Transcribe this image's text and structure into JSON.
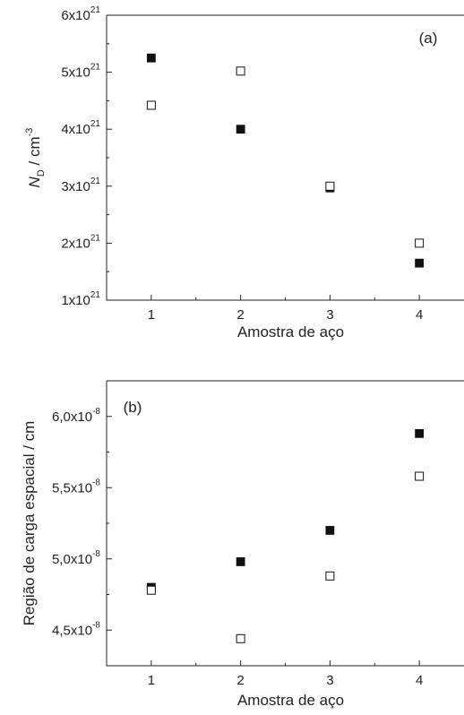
{
  "chart_data": [
    {
      "type": "scatter",
      "panel_label": "(a)",
      "xlabel": "Amostra de aço",
      "ylabel": {
        "main": "N",
        "sub": "D",
        "rest": " / cm",
        "sup": "-3"
      },
      "x_ticks": [
        "1",
        "2",
        "3",
        "4"
      ],
      "xlim": [
        0.5,
        4.5
      ],
      "ylim": [
        1e+21,
        6e+21
      ],
      "y_ticks": [
        {
          "value": 1e+21,
          "mant": "1x10",
          "exp": "21"
        },
        {
          "value": 2e+21,
          "mant": "2x10",
          "exp": "21"
        },
        {
          "value": 3e+21,
          "mant": "3x10",
          "exp": "21"
        },
        {
          "value": 4e+21,
          "mant": "4x10",
          "exp": "21"
        },
        {
          "value": 5e+21,
          "mant": "5x10",
          "exp": "21"
        },
        {
          "value": 6e+21,
          "mant": "6x10",
          "exp": "21"
        }
      ],
      "series": [
        {
          "marker": "filled-square",
          "x": [
            1,
            2,
            3,
            4
          ],
          "y": [
            5.25e+21,
            4e+21,
            2.97e+21,
            1.65e+21
          ]
        },
        {
          "marker": "open-square",
          "x": [
            1,
            2,
            3,
            4
          ],
          "y": [
            4.42e+21,
            5.02e+21,
            3e+21,
            2e+21
          ]
        }
      ]
    },
    {
      "type": "scatter",
      "panel_label": "(b)",
      "xlabel": "Amostra de aço",
      "ylabel": {
        "main": "Região de carga espacial / cm"
      },
      "x_ticks": [
        "1",
        "2",
        "3",
        "4"
      ],
      "xlim": [
        0.5,
        4.5
      ],
      "ylim": [
        4.25e-08,
        6.25e-08
      ],
      "y_ticks": [
        {
          "value": 4.5e-08,
          "mant": "4,5x10",
          "exp": "-8"
        },
        {
          "value": 5e-08,
          "mant": "5,0x10",
          "exp": "-8"
        },
        {
          "value": 5.5e-08,
          "mant": "5,5x10",
          "exp": "-8"
        },
        {
          "value": 6e-08,
          "mant": "6,0x10",
          "exp": "-8"
        }
      ],
      "series": [
        {
          "marker": "filled-square",
          "x": [
            1,
            2,
            3,
            4
          ],
          "y": [
            4.8e-08,
            4.98e-08,
            5.2e-08,
            5.88e-08
          ]
        },
        {
          "marker": "open-square",
          "x": [
            1,
            2,
            3,
            4
          ],
          "y": [
            4.78e-08,
            4.44e-08,
            4.88e-08,
            5.58e-08
          ]
        }
      ]
    }
  ]
}
